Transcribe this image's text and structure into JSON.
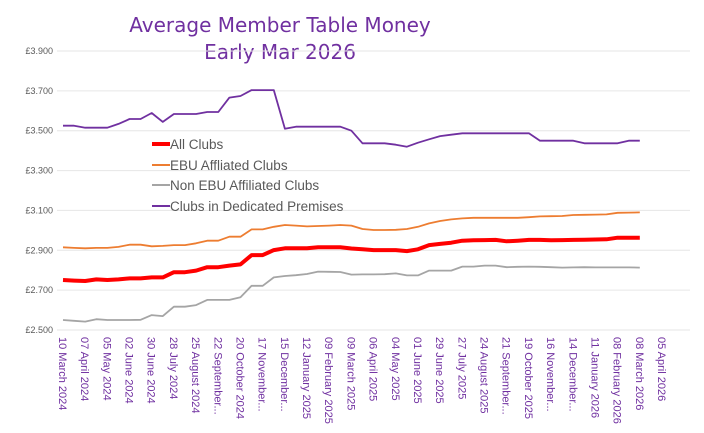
{
  "chart_data": {
    "type": "line",
    "title": "Average Member Table Money",
    "subtitle": "Early Mar 2026",
    "xlabel": "",
    "ylabel": "",
    "ylim": [
      2.5,
      3.9
    ],
    "yticks": [
      "£2.500",
      "£2.700",
      "£2.900",
      "£3.100",
      "£3.300",
      "£3.500",
      "£3.700",
      "£3.900"
    ],
    "ytick_values": [
      2.5,
      2.7,
      2.9,
      3.1,
      3.3,
      3.5,
      3.7,
      3.9
    ],
    "xlim": [
      "2024-03-10",
      "2026-04-05"
    ],
    "xtick_values": [
      "2024-03-10",
      "2024-04-07",
      "2024-05-05",
      "2024-06-02",
      "2024-06-30",
      "2024-07-28",
      "2024-08-25",
      "2024-09-22",
      "2024-10-20",
      "2024-11-17",
      "2024-12-15",
      "2025-01-12",
      "2025-02-09",
      "2025-03-09",
      "2025-04-06",
      "2025-05-04",
      "2025-06-01",
      "2025-06-29",
      "2025-07-27",
      "2025-08-24",
      "2025-09-21",
      "2025-10-19",
      "2025-11-16",
      "2025-12-14",
      "2026-01-11",
      "2026-02-08",
      "2026-03-08",
      "2026-04-05"
    ],
    "xticks": [
      "10 March 2024",
      "07 April 2024",
      "05 May 2024",
      "02 June 2024",
      "30 June 2024",
      "28 July 2024",
      "25 August 2024",
      "22 September...",
      "20 October 2024",
      "17 November...",
      "15 December...",
      "12 January 2025",
      "09 February 2025",
      "09 March 2025",
      "06 April 2025",
      "04 May 2025",
      "01 June 2025",
      "29 June 2025",
      "27 July 2025",
      "24 August 2025",
      "21 September...",
      "19 October 2025",
      "16 November...",
      "14 December...",
      "11 January 2026",
      "08 February 2026",
      "08 March 2026",
      "05 April 2026"
    ],
    "grid": true,
    "legend_placement": "center-left",
    "x": [
      "2024-03-10",
      "2024-03-24",
      "2024-04-07",
      "2024-04-21",
      "2024-05-05",
      "2024-05-19",
      "2024-06-02",
      "2024-06-16",
      "2024-06-30",
      "2024-07-14",
      "2024-07-28",
      "2024-08-11",
      "2024-08-25",
      "2024-09-08",
      "2024-09-22",
      "2024-10-06",
      "2024-10-20",
      "2024-11-03",
      "2024-11-17",
      "2024-12-01",
      "2024-12-15",
      "2024-12-29",
      "2025-01-12",
      "2025-01-26",
      "2025-02-09",
      "2025-02-23",
      "2025-03-09",
      "2025-03-23",
      "2025-04-06",
      "2025-04-20",
      "2025-05-04",
      "2025-05-18",
      "2025-06-01",
      "2025-06-15",
      "2025-06-29",
      "2025-07-13",
      "2025-07-27",
      "2025-08-10",
      "2025-08-24",
      "2025-09-07",
      "2025-09-21",
      "2025-10-05",
      "2025-10-19",
      "2025-11-02",
      "2025-11-16",
      "2025-11-30",
      "2025-12-14",
      "2025-12-28",
      "2026-01-11",
      "2026-01-25",
      "2026-02-08",
      "2026-02-22",
      "2026-03-08"
    ],
    "series": [
      {
        "name": "All Clubs",
        "color": "#FF0000",
        "values": [
          2.751,
          2.748,
          2.746,
          2.754,
          2.751,
          2.754,
          2.759,
          2.759,
          2.764,
          2.764,
          2.79,
          2.79,
          2.798,
          2.815,
          2.815,
          2.823,
          2.829,
          2.876,
          2.876,
          2.901,
          2.91,
          2.91,
          2.91,
          2.915,
          2.915,
          2.915,
          2.909,
          2.905,
          2.901,
          2.901,
          2.901,
          2.896,
          2.905,
          2.926,
          2.932,
          2.938,
          2.948,
          2.95,
          2.951,
          2.952,
          2.945,
          2.948,
          2.952,
          2.952,
          2.95,
          2.951,
          2.952,
          2.953,
          2.954,
          2.955,
          2.963,
          2.963,
          2.963
        ]
      },
      {
        "name": "EBU Affliated Clubs",
        "color": "#ED7D31",
        "values": [
          2.915,
          2.912,
          2.91,
          2.912,
          2.912,
          2.917,
          2.928,
          2.928,
          2.92,
          2.922,
          2.926,
          2.926,
          2.935,
          2.948,
          2.948,
          2.968,
          2.968,
          3.005,
          3.005,
          3.018,
          3.027,
          3.024,
          3.02,
          3.022,
          3.024,
          3.027,
          3.024,
          3.007,
          3.002,
          3.002,
          3.003,
          3.007,
          3.018,
          3.035,
          3.047,
          3.055,
          3.06,
          3.063,
          3.063,
          3.063,
          3.063,
          3.063,
          3.066,
          3.07,
          3.071,
          3.072,
          3.077,
          3.078,
          3.079,
          3.08,
          3.088,
          3.089,
          3.09
        ]
      },
      {
        "name": "Non EBU Affiliated Clubs",
        "color": "#A5A5A5",
        "values": [
          2.55,
          2.546,
          2.542,
          2.554,
          2.55,
          2.55,
          2.55,
          2.551,
          2.575,
          2.57,
          2.617,
          2.617,
          2.625,
          2.651,
          2.651,
          2.651,
          2.664,
          2.722,
          2.722,
          2.764,
          2.771,
          2.775,
          2.781,
          2.793,
          2.792,
          2.791,
          2.778,
          2.779,
          2.779,
          2.78,
          2.784,
          2.774,
          2.774,
          2.798,
          2.798,
          2.798,
          2.818,
          2.818,
          2.823,
          2.823,
          2.815,
          2.817,
          2.818,
          2.817,
          2.815,
          2.813,
          2.814,
          2.815,
          2.814,
          2.814,
          2.814,
          2.814,
          2.813
        ]
      },
      {
        "name": "Clubs in Dedicated Premises",
        "color": "#7030A0",
        "values": [
          3.525,
          3.525,
          3.515,
          3.515,
          3.515,
          3.534,
          3.559,
          3.559,
          3.589,
          3.544,
          3.584,
          3.584,
          3.584,
          3.594,
          3.594,
          3.666,
          3.674,
          3.704,
          3.704,
          3.704,
          3.51,
          3.52,
          3.52,
          3.52,
          3.52,
          3.52,
          3.5,
          3.437,
          3.437,
          3.437,
          3.43,
          3.42,
          3.44,
          3.457,
          3.473,
          3.48,
          3.487,
          3.487,
          3.487,
          3.487,
          3.487,
          3.487,
          3.487,
          3.45,
          3.45,
          3.45,
          3.45,
          3.437,
          3.437,
          3.437,
          3.437,
          3.45,
          3.45
        ]
      }
    ]
  }
}
